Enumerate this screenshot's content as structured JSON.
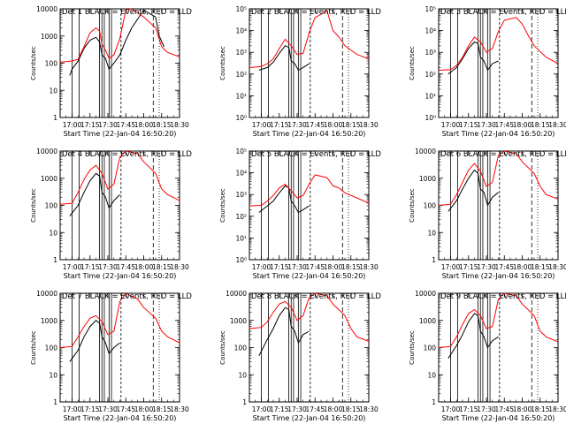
{
  "colors": {
    "events": "#000000",
    "lld": "#ff0000",
    "background": "#ffffff"
  },
  "chart_data": {
    "type": "line",
    "y_scale": "log",
    "x_ticks": [
      "17:00",
      "17:15",
      "17:30",
      "17:45",
      "18:00",
      "18:15",
      "18:30"
    ],
    "xlabel": "Start Time (22-Jan-04 16:50:20)",
    "ylabel": "Counts/sec",
    "legend": "top",
    "grid": false,
    "panels": [
      {
        "title": "Det  1 BLACK = Events, RED = LLD",
        "ylim": [
          1,
          10000
        ],
        "y_tick_labels": [
          "1",
          "10",
          "100",
          "1000",
          "10000"
        ],
        "series": [
          {
            "name": "Events",
            "x": [
              "16:58",
              "17:00",
              "17:05",
              "17:10",
              "17:15",
              "17:20",
              "17:23",
              "17:25",
              "17:28",
              "17:31",
              "17:35",
              "17:40",
              "17:45",
              "17:50",
              "18:00",
              "18:10",
              "18:13",
              "18:17"
            ],
            "y": [
              35,
              60,
              120,
              350,
              700,
              900,
              600,
              200,
              150,
              60,
              100,
              200,
              700,
              2000,
              9000,
              5000,
              1000,
              400
            ]
          },
          {
            "name": "LLD",
            "x": [
              "16:50",
              "16:55",
              "17:00",
              "17:05",
              "17:10",
              "17:15",
              "17:20",
              "17:23",
              "17:25",
              "17:28",
              "17:31",
              "17:35",
              "17:40",
              "17:45",
              "17:50",
              "18:00",
              "18:10",
              "18:15",
              "18:20",
              "18:30"
            ],
            "y": [
              110,
              115,
              120,
              140,
              400,
              1300,
              2000,
              1500,
              500,
              300,
              150,
              200,
              800,
              9000,
              10000,
              5000,
              2000,
              400,
              250,
              170
            ]
          }
        ]
      },
      {
        "title": "Det  2 BLACK = Events, RED = LLD",
        "ylim": [
          1,
          100000
        ],
        "y_tick_labels": [
          "10⁰",
          "10¹",
          "10²",
          "10³",
          "10⁴",
          "10⁵"
        ],
        "series": [
          {
            "name": "Events",
            "x": [
              "16:58",
              "17:05",
              "17:10",
              "17:15",
              "17:20",
              "17:23",
              "17:25",
              "17:28",
              "17:31",
              "17:35",
              "17:40"
            ],
            "y": [
              150,
              200,
              350,
              900,
              2000,
              1700,
              400,
              300,
              150,
              200,
              300
            ]
          },
          {
            "name": "LLD",
            "x": [
              "16:50",
              "17:00",
              "17:05",
              "17:10",
              "17:15",
              "17:20",
              "17:25",
              "17:30",
              "17:35",
              "17:40",
              "17:45",
              "17:55",
              "18:00",
              "18:05",
              "18:10",
              "18:20",
              "18:30"
            ],
            "y": [
              200,
              220,
              300,
              500,
              1500,
              4000,
              2000,
              800,
              900,
              8000,
              40000,
              80000,
              10000,
              5000,
              2000,
              800,
              500
            ]
          }
        ]
      },
      {
        "title": "Det  3 BLACK = Events, RED = LLD",
        "ylim": [
          1,
          100000
        ],
        "y_tick_labels": [
          "10⁰",
          "10¹",
          "10²",
          "10³",
          "10⁴",
          "10⁵"
        ],
        "series": [
          {
            "name": "Events",
            "x": [
              "16:58",
              "17:05",
              "17:10",
              "17:15",
              "17:20",
              "17:23",
              "17:25",
              "17:28",
              "17:31",
              "17:35",
              "17:40"
            ],
            "y": [
              100,
              200,
              500,
              1500,
              3000,
              2500,
              600,
              400,
              150,
              300,
              400
            ]
          },
          {
            "name": "LLD",
            "x": [
              "16:50",
              "17:00",
              "17:05",
              "17:10",
              "17:15",
              "17:20",
              "17:25",
              "17:30",
              "17:35",
              "17:40",
              "17:45",
              "17:55",
              "18:00",
              "18:05",
              "18:10",
              "18:20",
              "18:30"
            ],
            "y": [
              150,
              160,
              250,
              600,
              2000,
              5000,
              3000,
              1000,
              1500,
              9000,
              30000,
              40000,
              20000,
              6000,
              2000,
              600,
              300
            ]
          }
        ]
      },
      {
        "title": "Det  4 BLACK = Events, RED = LLD",
        "ylim": [
          1,
          10000
        ],
        "y_tick_labels": [
          "1",
          "10",
          "100",
          "1000",
          "10000"
        ],
        "series": [
          {
            "name": "Events",
            "x": [
              "16:58",
              "17:05",
              "17:10",
              "17:15",
              "17:20",
              "17:23",
              "17:25",
              "17:28",
              "17:31",
              "17:35",
              "17:40"
            ],
            "y": [
              40,
              100,
              300,
              800,
              1500,
              1200,
              300,
              200,
              80,
              150,
              250
            ]
          },
          {
            "name": "LLD",
            "x": [
              "16:50",
              "17:00",
              "17:05",
              "17:10",
              "17:15",
              "17:20",
              "17:25",
              "17:30",
              "17:35",
              "17:40",
              "17:45",
              "17:55",
              "18:00",
              "18:10",
              "18:15",
              "18:20",
              "18:30"
            ],
            "y": [
              110,
              120,
              300,
              900,
              2000,
              3000,
              1500,
              400,
              600,
              6000,
              10000,
              8000,
              4000,
              1500,
              400,
              250,
              150
            ]
          }
        ]
      },
      {
        "title": "Det  5 BLACK = Events, RED = LLD",
        "ylim": [
          1,
          100000
        ],
        "y_tick_labels": [
          "10⁰",
          "10¹",
          "10²",
          "10³",
          "10⁴",
          "10⁵"
        ],
        "series": [
          {
            "name": "Events",
            "x": [
              "16:58",
              "17:05",
              "17:10",
              "17:15",
              "17:20",
              "17:23",
              "17:25",
              "17:28",
              "17:31",
              "17:35",
              "17:40"
            ],
            "y": [
              150,
              300,
              500,
              1200,
              2500,
              2000,
              500,
              300,
              150,
              200,
              300
            ]
          },
          {
            "name": "LLD",
            "x": [
              "16:50",
              "17:00",
              "17:05",
              "17:10",
              "17:15",
              "17:20",
              "17:25",
              "17:30",
              "17:35",
              "17:40",
              "17:45",
              "17:55",
              "18:00",
              "18:05",
              "18:10",
              "18:20",
              "18:30"
            ],
            "y": [
              300,
              320,
              500,
              900,
              2000,
              3000,
              1500,
              700,
              900,
              3000,
              8000,
              6000,
              2500,
              2000,
              1200,
              700,
              400
            ]
          }
        ]
      },
      {
        "title": "Det  6 BLACK = Events, RED = LLD",
        "ylim": [
          1,
          10000
        ],
        "y_tick_labels": [
          "1",
          "10",
          "100",
          "1000",
          "10000"
        ],
        "series": [
          {
            "name": "Events",
            "x": [
              "16:58",
              "17:05",
              "17:10",
              "17:15",
              "17:20",
              "17:23",
              "17:25",
              "17:28",
              "17:31",
              "17:35",
              "17:40"
            ],
            "y": [
              60,
              150,
              400,
              1000,
              2000,
              1500,
              400,
              300,
              100,
              200,
              300
            ]
          },
          {
            "name": "LLD",
            "x": [
              "16:50",
              "17:00",
              "17:05",
              "17:10",
              "17:15",
              "17:20",
              "17:25",
              "17:30",
              "17:35",
              "17:40",
              "17:45",
              "17:55",
              "18:00",
              "18:10",
              "18:15",
              "18:20",
              "18:30"
            ],
            "y": [
              100,
              110,
              250,
              700,
              2000,
              3500,
              1800,
              500,
              700,
              7000,
              10000,
              8000,
              4000,
              1500,
              500,
              250,
              170
            ]
          }
        ]
      },
      {
        "title": "Det  7 BLACK = Events, RED = LLD",
        "ylim": [
          1,
          10000
        ],
        "y_tick_labels": [
          "1",
          "10",
          "100",
          "1000",
          "10000"
        ],
        "series": [
          {
            "name": "Events",
            "x": [
              "16:58",
              "17:05",
              "17:10",
              "17:15",
              "17:20",
              "17:23",
              "17:25",
              "17:28",
              "17:31",
              "17:35",
              "17:40"
            ],
            "y": [
              30,
              80,
              250,
              600,
              1000,
              800,
              250,
              150,
              60,
              100,
              150
            ]
          },
          {
            "name": "LLD",
            "x": [
              "16:50",
              "17:00",
              "17:05",
              "17:10",
              "17:15",
              "17:20",
              "17:25",
              "17:30",
              "17:35",
              "17:40",
              "17:45",
              "17:55",
              "18:00",
              "18:10",
              "18:15",
              "18:20",
              "18:30"
            ],
            "y": [
              100,
              110,
              250,
              600,
              1200,
              1500,
              900,
              300,
              400,
              5000,
              10000,
              6000,
              3000,
              1200,
              400,
              250,
              150
            ]
          }
        ]
      },
      {
        "title": "Det  8 BLACK = Events, RED = LLD",
        "ylim": [
          1,
          10000
        ],
        "y_tick_labels": [
          "1",
          "10",
          "100",
          "1000",
          "10000"
        ],
        "series": [
          {
            "name": "Events",
            "x": [
              "16:58",
              "17:05",
              "17:10",
              "17:15",
              "17:20",
              "17:23",
              "17:25",
              "17:28",
              "17:31",
              "17:35",
              "17:40"
            ],
            "y": [
              50,
              200,
              500,
              1500,
              3000,
              2500,
              600,
              400,
              150,
              300,
              400
            ]
          },
          {
            "name": "LLD",
            "x": [
              "16:50",
              "17:00",
              "17:05",
              "17:10",
              "17:15",
              "17:20",
              "17:25",
              "17:30",
              "17:35",
              "17:40",
              "17:45",
              "17:55",
              "18:00",
              "18:10",
              "18:15",
              "18:20",
              "18:30"
            ],
            "y": [
              500,
              550,
              900,
              2000,
              4000,
              5000,
              3000,
              1000,
              1500,
              7000,
              10000,
              8000,
              4000,
              1500,
              500,
              250,
              170
            ]
          }
        ]
      },
      {
        "title": "Det  9 BLACK = Events, RED = LLD",
        "ylim": [
          1,
          10000
        ],
        "y_tick_labels": [
          "1",
          "10",
          "100",
          "1000",
          "10000"
        ],
        "series": [
          {
            "name": "Events",
            "x": [
              "16:58",
              "17:05",
              "17:10",
              "17:15",
              "17:20",
              "17:23",
              "17:25",
              "17:28",
              "17:31",
              "17:35",
              "17:40"
            ],
            "y": [
              40,
              120,
              300,
              900,
              1800,
              1500,
              400,
              250,
              100,
              180,
              250
            ]
          },
          {
            "name": "LLD",
            "x": [
              "16:50",
              "17:00",
              "17:05",
              "17:10",
              "17:15",
              "17:20",
              "17:25",
              "17:30",
              "17:35",
              "17:40",
              "17:45",
              "17:55",
              "18:00",
              "18:10",
              "18:15",
              "18:20",
              "18:30"
            ],
            "y": [
              100,
              110,
              250,
              700,
              1800,
              2500,
              1500,
              500,
              600,
              6000,
              10000,
              8000,
              4000,
              1500,
              400,
              250,
              160
            ]
          }
        ]
      }
    ]
  }
}
